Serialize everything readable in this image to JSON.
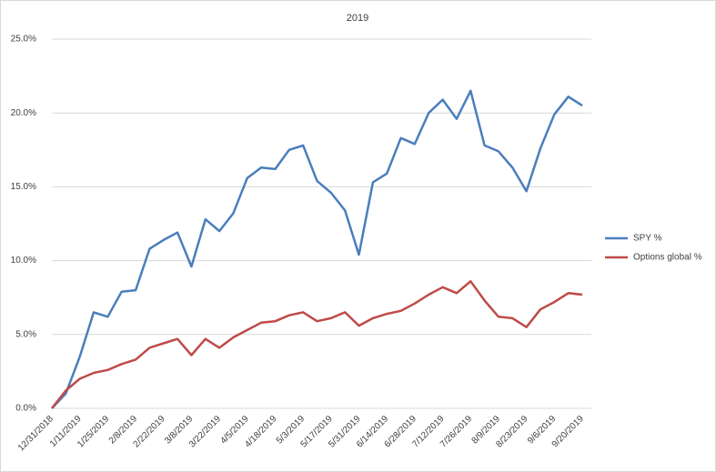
{
  "chart_data": {
    "type": "line",
    "title": "2019",
    "categories": [
      "12/31/2018",
      null,
      "1/11/2019",
      null,
      "1/25/2019",
      null,
      "2/8/2019",
      null,
      "2/22/2019",
      null,
      "3/8/2019",
      null,
      "3/22/2019",
      null,
      "4/5/2019",
      null,
      "4/18/2019",
      null,
      "5/3/2019",
      null,
      "5/17/2019",
      null,
      "5/31/2019",
      null,
      "6/14/2019",
      null,
      "6/28/2019",
      null,
      "7/12/2019",
      null,
      "7/26/2019",
      null,
      "8/9/2019",
      null,
      "8/23/2019",
      null,
      "9/6/2019",
      null,
      "9/20/2019"
    ],
    "series": [
      {
        "name": "SPY %",
        "color": "#4a7ebb",
        "values": [
          0,
          1.0,
          3.5,
          6.5,
          6.2,
          7.9,
          8.0,
          10.8,
          11.4,
          11.9,
          9.6,
          12.8,
          12.0,
          13.2,
          15.6,
          16.3,
          16.2,
          17.5,
          17.8,
          15.4,
          14.6,
          13.4,
          10.4,
          15.3,
          15.9,
          18.3,
          17.9,
          20.0,
          20.9,
          19.6,
          21.5,
          17.8,
          17.4,
          16.3,
          14.7,
          17.6,
          19.9,
          21.1,
          20.5
        ]
      },
      {
        "name": "Options global %",
        "color": "#be4b48",
        "values": [
          0,
          1.2,
          2.0,
          2.4,
          2.6,
          3.0,
          3.3,
          4.1,
          4.4,
          4.7,
          3.6,
          4.7,
          4.1,
          4.8,
          5.3,
          5.8,
          5.9,
          6.3,
          6.5,
          5.9,
          6.1,
          6.5,
          5.6,
          6.1,
          6.4,
          6.6,
          7.1,
          7.7,
          8.2,
          7.8,
          8.6,
          7.3,
          6.2,
          6.1,
          5.5,
          6.7,
          7.2,
          7.8,
          7.7
        ]
      }
    ],
    "ylim": [
      0,
      25
    ],
    "yticks": [
      {
        "value": 0,
        "label": "0.0%"
      },
      {
        "value": 5,
        "label": "5.0%"
      },
      {
        "value": 10,
        "label": "10.0%"
      },
      {
        "value": 15,
        "label": "15.0%"
      },
      {
        "value": 20,
        "label": "20.0%"
      },
      {
        "value": 25,
        "label": "25.0%"
      }
    ],
    "grid": true,
    "legend": "right"
  }
}
